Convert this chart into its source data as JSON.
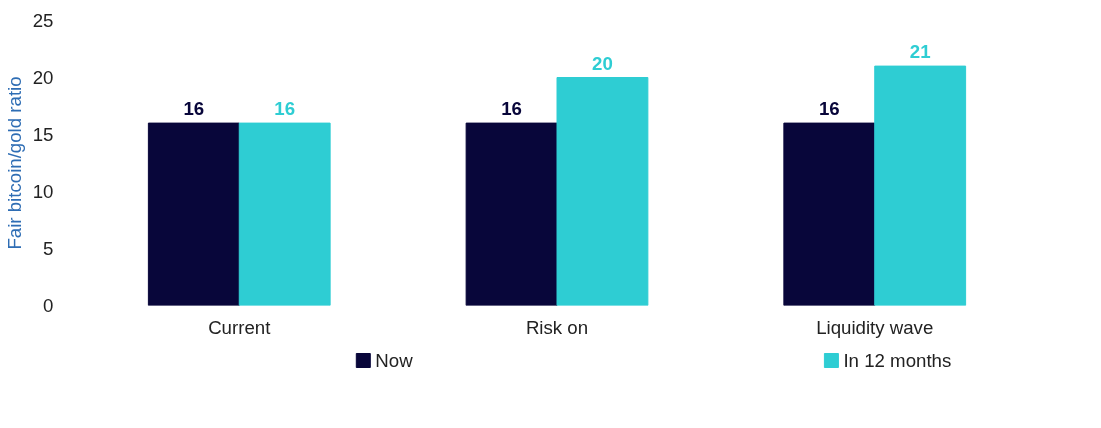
{
  "chart_data": {
    "type": "bar",
    "ylabel": "Fair bitcoin/gold ratio",
    "categories": [
      "Current",
      "Risk on",
      "Liquidity wave"
    ],
    "series": [
      {
        "name": "Now",
        "color": "#08063a",
        "values": [
          16,
          16,
          16
        ]
      },
      {
        "name": "In 12 months",
        "color": "#2ecdd3",
        "values": [
          16,
          20,
          21
        ]
      }
    ],
    "ylim": [
      0,
      25
    ],
    "yticks": [
      0,
      5,
      10,
      15,
      20,
      25
    ],
    "grid": false,
    "legend": "bottom",
    "data_labels": true
  }
}
